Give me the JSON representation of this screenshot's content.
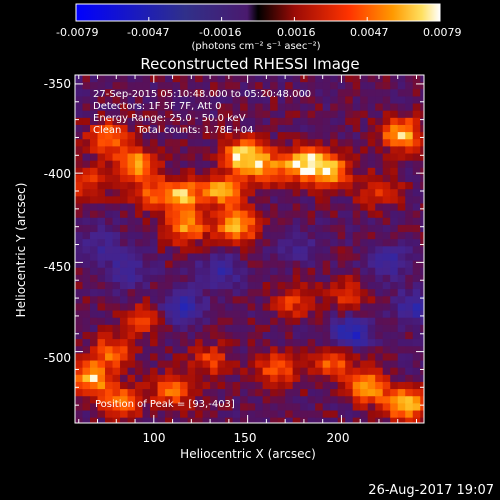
{
  "colorbar": {
    "ticks": [
      "-0.0079",
      "-0.0047",
      "-0.0016",
      "0.0016",
      "0.0047",
      "0.0079"
    ],
    "units_label": "(photons cm⁻² s⁻¹ asec⁻²)"
  },
  "plot": {
    "title": "Reconstructed RHESSI Image",
    "info_lines": [
      "27-Sep-2015 05:10:48.000 to 05:20:48.000",
      "Detectors: 1F 5F 7F, Att 0",
      "Energy Range: 25.0 - 50.0 keV",
      "Clean     Total counts: 1.78E+04"
    ],
    "peak_label": "Position of Peak = [93,-403]",
    "x_axis_label": "Heliocentric X (arcsec)",
    "y_axis_label": "Heliocentric Y (arcsec)",
    "x_ticks": [
      "100",
      "150",
      "200"
    ],
    "y_ticks": [
      "-350",
      "-400",
      "-450",
      "-500"
    ]
  },
  "footer": {
    "timestamp": "26-Aug-2017 19:07"
  },
  "chart_data": {
    "type": "heatmap",
    "title": "Reconstructed RHESSI Image",
    "xlabel": "Heliocentric X (arcsec)",
    "ylabel": "Heliocentric Y (arcsec)",
    "xlim": [
      58,
      244
    ],
    "ylim": [
      -540,
      -345
    ],
    "x_ticks": [
      100,
      150,
      200
    ],
    "y_ticks": [
      -350,
      -400,
      -450,
      -500
    ],
    "color_range": [
      -0.0079,
      0.0079
    ],
    "colorbar_ticks": [
      -0.0079,
      -0.0047,
      -0.0016,
      0.0016,
      0.0047,
      0.0079
    ],
    "colorbar_units": "photons cm^-2 s^-1 asec^-2",
    "peak_position": [
      93,
      -403
    ],
    "features": [
      {
        "x": 148,
        "y": -390,
        "value": 0.0079
      },
      {
        "x": 137,
        "y": -410,
        "value": 0.0062
      },
      {
        "x": 115,
        "y": -412,
        "value": 0.0058
      },
      {
        "x": 180,
        "y": -395,
        "value": 0.0075
      },
      {
        "x": 194,
        "y": -399,
        "value": 0.006
      },
      {
        "x": 160,
        "y": -398,
        "value": 0.0045
      },
      {
        "x": 117,
        "y": -430,
        "value": 0.006
      },
      {
        "x": 144,
        "y": -430,
        "value": 0.0068
      },
      {
        "x": 98,
        "y": -412,
        "value": 0.0035
      },
      {
        "x": 91,
        "y": -396,
        "value": 0.0065
      },
      {
        "x": 76,
        "y": -380,
        "value": 0.0055
      },
      {
        "x": 64,
        "y": -405,
        "value": 0.0035
      },
      {
        "x": 232,
        "y": -378,
        "value": 0.0065
      },
      {
        "x": 220,
        "y": -410,
        "value": 0.0035
      },
      {
        "x": 95,
        "y": -482,
        "value": 0.0035
      },
      {
        "x": 77,
        "y": -500,
        "value": 0.0045
      },
      {
        "x": 66,
        "y": -515,
        "value": 0.0065
      },
      {
        "x": 82,
        "y": -528,
        "value": 0.0052
      },
      {
        "x": 110,
        "y": -522,
        "value": 0.0045
      },
      {
        "x": 130,
        "y": -505,
        "value": 0.0035
      },
      {
        "x": 175,
        "y": -472,
        "value": 0.0035
      },
      {
        "x": 165,
        "y": -510,
        "value": 0.0045
      },
      {
        "x": 196,
        "y": -505,
        "value": 0.005
      },
      {
        "x": 214,
        "y": -520,
        "value": 0.0062
      },
      {
        "x": 235,
        "y": -530,
        "value": 0.0072
      },
      {
        "x": 204,
        "y": -468,
        "value": 0.0035
      },
      {
        "x": 115,
        "y": -475,
        "value": -0.0045
      },
      {
        "x": 85,
        "y": -455,
        "value": -0.003
      },
      {
        "x": 135,
        "y": -455,
        "value": -0.0035
      },
      {
        "x": 205,
        "y": -490,
        "value": -0.0055
      },
      {
        "x": 175,
        "y": -440,
        "value": -0.002
      },
      {
        "x": 224,
        "y": -450,
        "value": -0.0035
      },
      {
        "x": 70,
        "y": -440,
        "value": -0.0025
      },
      {
        "x": 240,
        "y": -475,
        "value": -0.004
      }
    ]
  }
}
